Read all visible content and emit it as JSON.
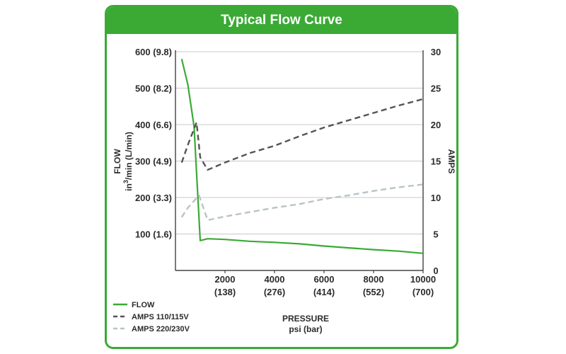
{
  "chart_data": {
    "type": "line",
    "title": "Typical Flow Curve",
    "xlabel": "PRESSURE",
    "xlabel_units": "psi (bar)",
    "ylabel": "FLOW",
    "ylabel_units_pre": "in",
    "ylabel_units_sup": "3",
    "ylabel_units_post": "/min  (L/min)",
    "y2label": "AMPS",
    "xlim": [
      0,
      10000
    ],
    "ylim": [
      0,
      600
    ],
    "y2lim": [
      0,
      30
    ],
    "x_ticks": [
      {
        "value": 2000,
        "label": "2000",
        "sub": "(138)"
      },
      {
        "value": 4000,
        "label": "4000",
        "sub": "(276)"
      },
      {
        "value": 6000,
        "label": "6000",
        "sub": "(414)"
      },
      {
        "value": 8000,
        "label": "8000",
        "sub": "(552)"
      },
      {
        "value": 10000,
        "label": "10000",
        "sub": "(700)"
      }
    ],
    "y_ticks": [
      {
        "value": 100,
        "label": "100 (1.6)"
      },
      {
        "value": 200,
        "label": "200 (3.3)"
      },
      {
        "value": 300,
        "label": "300 (4.9)"
      },
      {
        "value": 400,
        "label": "400 (6.6)"
      },
      {
        "value": 500,
        "label": "500 (8.2)"
      },
      {
        "value": 600,
        "label": "600 (9.8)"
      }
    ],
    "y2_ticks": [
      {
        "value": 0,
        "label": "0"
      },
      {
        "value": 5,
        "label": "5"
      },
      {
        "value": 10,
        "label": "10"
      },
      {
        "value": 15,
        "label": "15"
      },
      {
        "value": 20,
        "label": "20"
      },
      {
        "value": 25,
        "label": "25"
      },
      {
        "value": 30,
        "label": "30"
      }
    ],
    "grid": true,
    "legend_position": "bottom-left",
    "series": [
      {
        "name": "FLOW",
        "axis": "left",
        "color": "#3aaa35",
        "style": "solid",
        "x": [
          250,
          500,
          750,
          1000,
          1300,
          2000,
          3000,
          4000,
          5000,
          6000,
          7000,
          8000,
          9000,
          10000
        ],
        "y": [
          580,
          510,
          395,
          82,
          87,
          85,
          80,
          77,
          73,
          67,
          62,
          57,
          53,
          47
        ]
      },
      {
        "name": "AMPS 110/115V",
        "axis": "right",
        "color": "#555555",
        "style": "dashed",
        "x": [
          250,
          500,
          850,
          1000,
          1300,
          2000,
          3000,
          4000,
          5000,
          6000,
          7000,
          8000,
          9000,
          10000
        ],
        "y": [
          14.8,
          17.2,
          20.3,
          15.5,
          13.8,
          14.8,
          16.1,
          17.1,
          18.4,
          19.6,
          20.6,
          21.6,
          22.6,
          23.5
        ]
      },
      {
        "name": "AMPS 220/230V",
        "axis": "right",
        "color": "#b9c3c8",
        "style": "dashed",
        "x": [
          250,
          500,
          950,
          1300,
          2000,
          3000,
          4000,
          5000,
          6000,
          7000,
          8000,
          9000,
          10000
        ],
        "y": [
          7.3,
          8.6,
          10.3,
          6.9,
          7.4,
          8.0,
          8.6,
          9.1,
          9.8,
          10.3,
          10.9,
          11.4,
          11.8
        ]
      }
    ]
  }
}
